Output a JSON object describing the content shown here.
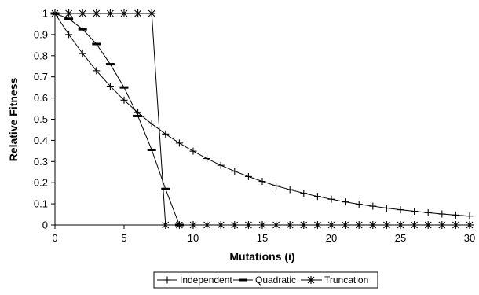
{
  "chart_data": {
    "type": "line",
    "xlabel": "Mutations (i)",
    "ylabel": "Relative Fitness",
    "xlim": [
      0,
      30
    ],
    "ylim": [
      0,
      1
    ],
    "x_ticks": [
      "0",
      "5",
      "10",
      "15",
      "20",
      "25",
      "30"
    ],
    "y_ticks": [
      "0",
      "0.1",
      "0.2",
      "0.3",
      "0.4",
      "0.5",
      "0.6",
      "0.7",
      "0.8",
      "0.9",
      "1"
    ],
    "grid": false,
    "legend_position": "bottom",
    "series": [
      {
        "name": "Independent",
        "marker": "plus",
        "x": [
          0,
          1,
          2,
          3,
          4,
          5,
          6,
          7,
          8,
          9,
          10,
          11,
          12,
          13,
          14,
          15,
          16,
          17,
          18,
          19,
          20,
          21,
          22,
          23,
          24,
          25,
          26,
          27,
          28,
          29,
          30
        ],
        "y": [
          1,
          0.9,
          0.81,
          0.729,
          0.656,
          0.59,
          0.531,
          0.478,
          0.43,
          0.387,
          0.349,
          0.314,
          0.282,
          0.254,
          0.229,
          0.206,
          0.185,
          0.167,
          0.15,
          0.135,
          0.122,
          0.109,
          0.098,
          0.089,
          0.08,
          0.072,
          0.065,
          0.058,
          0.052,
          0.047,
          0.042
        ]
      },
      {
        "name": "Quadratic",
        "marker": "dash",
        "x": [
          0,
          1,
          2,
          3,
          4,
          5,
          6,
          7,
          8,
          9
        ],
        "y": [
          1,
          0.975,
          0.925,
          0.855,
          0.76,
          0.65,
          0.515,
          0.355,
          0.17,
          0
        ]
      },
      {
        "name": "Truncation",
        "marker": "asterisk",
        "x": [
          0,
          1,
          2,
          3,
          4,
          5,
          6,
          7,
          8,
          9,
          10,
          11,
          12,
          13,
          14,
          15,
          16,
          17,
          18,
          19,
          20,
          21,
          22,
          23,
          24,
          25,
          26,
          27,
          28,
          29,
          30
        ],
        "y": [
          1,
          1,
          1,
          1,
          1,
          1,
          1,
          1,
          0,
          0,
          0,
          0,
          0,
          0,
          0,
          0,
          0,
          0,
          0,
          0,
          0,
          0,
          0,
          0,
          0,
          0,
          0,
          0,
          0,
          0,
          0
        ]
      }
    ]
  }
}
